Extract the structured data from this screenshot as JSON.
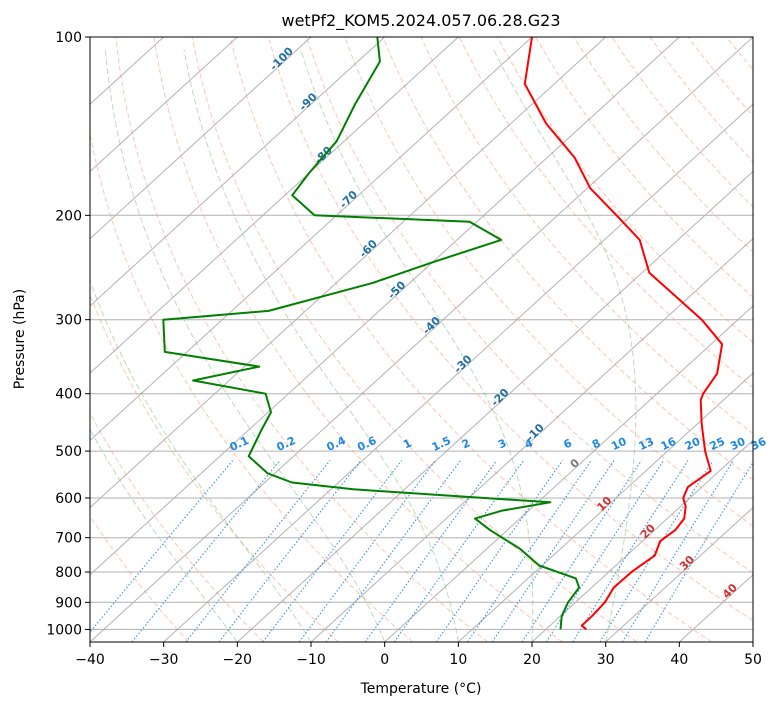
{
  "chart_data": {
    "type": "line",
    "subtype": "skew-t-log-p",
    "title": "wetPf2_KOM5.2024.057.06.28.G23",
    "xlabel": "Temperature (°C)",
    "ylabel": "Pressure (hPa)",
    "xlim": [
      -40,
      50
    ],
    "ylim": [
      1050,
      100
    ],
    "y_scale": "log",
    "grid": true,
    "x_ticks": [
      -40,
      -30,
      -20,
      -10,
      0,
      10,
      20,
      30,
      40,
      50
    ],
    "x_tick_labels": [
      "−40",
      "−30",
      "−20",
      "−10",
      "0",
      "10",
      "20",
      "30",
      "40",
      "50"
    ],
    "y_ticks": [
      1000,
      900,
      800,
      700,
      600,
      500,
      400,
      300,
      200,
      100
    ],
    "y_tick_labels": [
      "1000",
      "900",
      "800",
      "700",
      "600",
      "500",
      "400",
      "300",
      "200",
      "100"
    ],
    "series": [
      {
        "key": "temperature",
        "color": "#ff0000",
        "points": [
          [
            1000,
            25.5
          ],
          [
            985,
            24.3
          ],
          [
            950,
            24.3
          ],
          [
            900,
            24.0
          ],
          [
            850,
            23.0
          ],
          [
            800,
            23.1
          ],
          [
            750,
            23.8
          ],
          [
            710,
            22.4
          ],
          [
            680,
            22.8
          ],
          [
            650,
            22.3
          ],
          [
            620,
            20.7
          ],
          [
            600,
            19.1
          ],
          [
            575,
            18.1
          ],
          [
            540,
            18.8
          ],
          [
            500,
            15.1
          ],
          [
            450,
            10.6
          ],
          [
            410,
            6.9
          ],
          [
            400,
            6.3
          ],
          [
            370,
            5.2
          ],
          [
            350,
            3.4
          ],
          [
            330,
            1.5
          ],
          [
            300,
            -4.9
          ],
          [
            250,
            -19.0
          ],
          [
            220,
            -25.2
          ],
          [
            200,
            -32.0
          ],
          [
            180,
            -39.6
          ],
          [
            160,
            -46.2
          ],
          [
            140,
            -55.2
          ],
          [
            120,
            -64.0
          ],
          [
            100,
            -70.0
          ]
        ]
      },
      {
        "key": "dewpoint",
        "color": "#008000",
        "points": [
          [
            1000,
            22.0
          ],
          [
            950,
            20.2
          ],
          [
            900,
            19.0
          ],
          [
            850,
            18.3
          ],
          [
            820,
            16.5
          ],
          [
            780,
            9.6
          ],
          [
            730,
            4.4
          ],
          [
            680,
            -2.3
          ],
          [
            650,
            -6.1
          ],
          [
            630,
            -3.6
          ],
          [
            610,
            1.7
          ],
          [
            580,
            -27.0
          ],
          [
            565,
            -36.3
          ],
          [
            545,
            -41.0
          ],
          [
            510,
            -46.1
          ],
          [
            460,
            -48.3
          ],
          [
            430,
            -49.6
          ],
          [
            400,
            -53.1
          ],
          [
            380,
            -64.9
          ],
          [
            360,
            -58.0
          ],
          [
            340,
            -73.0
          ],
          [
            300,
            -78.0
          ],
          [
            290,
            -65.0
          ],
          [
            260,
            -55.0
          ],
          [
            240,
            -50.0
          ],
          [
            220,
            -44.0
          ],
          [
            205,
            -51.0
          ],
          [
            200,
            -73.0
          ],
          [
            185,
            -79.0
          ],
          [
            170,
            -80.0
          ],
          [
            150,
            -81.0
          ],
          [
            130,
            -84.0
          ],
          [
            110,
            -87.0
          ],
          [
            100,
            -91.0
          ]
        ]
      }
    ],
    "background_lines": {
      "isotherm_color": "#a0a0a0",
      "dry_adiabat_color": "#ff7f50",
      "moist_adiabat_color": "#7ac47a",
      "mixing_ratio_color": "#1e88e5",
      "theta_e_label_color": "#1f6fa6",
      "isotherm_label_color": "#d32f2f",
      "zero_label_color": "#7a7a7a"
    },
    "mixing_ratio_labels": [
      "0.1",
      "0.2",
      "0.4",
      "0.6",
      "1",
      "1.5",
      "2",
      "3",
      "4",
      "6",
      "8",
      "10",
      "13",
      "16",
      "20",
      "25",
      "30",
      "36"
    ],
    "mixing_ratio_values": [
      0.1,
      0.2,
      0.4,
      0.6,
      1,
      1.5,
      2,
      3,
      4,
      6,
      8,
      10,
      13,
      16,
      20,
      25,
      30,
      36
    ],
    "theta_e_labels": [
      {
        "text": "-100",
        "temp": -100,
        "p": 110
      },
      {
        "text": "-90",
        "temp": -90,
        "p": 130
      },
      {
        "text": "-80",
        "temp": -80,
        "p": 160
      },
      {
        "text": "-70",
        "temp": -70,
        "p": 190
      },
      {
        "text": "-60",
        "temp": -60,
        "p": 230
      },
      {
        "text": "-50",
        "temp": -50,
        "p": 270
      },
      {
        "text": "-40",
        "temp": -40,
        "p": 310
      },
      {
        "text": "-30",
        "temp": -30,
        "p": 360
      },
      {
        "text": "-20",
        "temp": -20,
        "p": 410
      },
      {
        "text": "-10",
        "temp": -10,
        "p": 470
      }
    ],
    "isotherm_labels": [
      {
        "text": "0",
        "temp": 0,
        "p": 530
      },
      {
        "text": "10",
        "temp": 10,
        "p": 620
      },
      {
        "text": "20",
        "temp": 20,
        "p": 690
      },
      {
        "text": "30",
        "temp": 30,
        "p": 780
      },
      {
        "text": "40",
        "temp": 40,
        "p": 870
      }
    ]
  }
}
